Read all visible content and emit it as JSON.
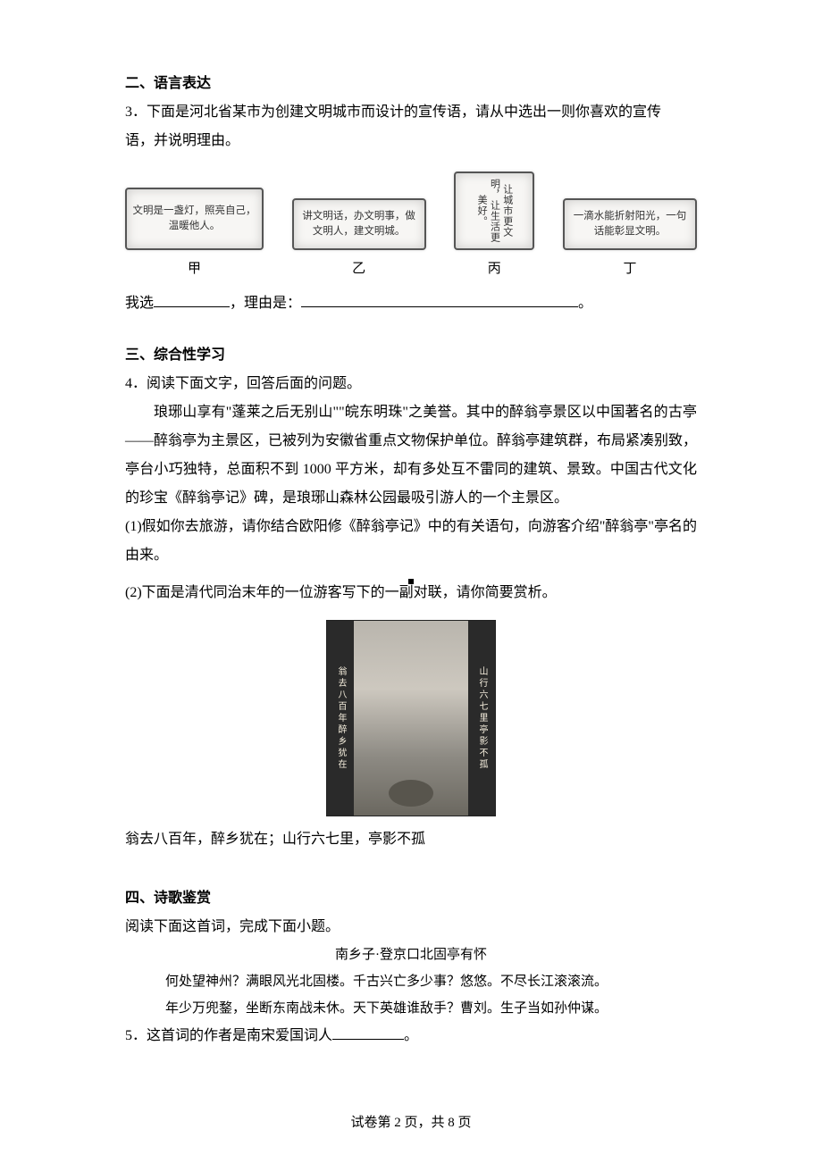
{
  "section2": {
    "heading": "二、语言表达",
    "q3_intro1": "3．下面是河北省某市为创建文明城市而设计的宣传语，请从中选出一则你喜欢的宣传",
    "q3_intro2": "语，并说明理由。",
    "slogans": {
      "a_text": "文明是一盏灯，照亮自己，温暖他人。",
      "a_label": "甲",
      "b_text": "讲文明话，办文明事，做文明人，建文明城。",
      "b_label": "乙",
      "c_text": "让城市更文明，让生活更美好。",
      "c_label": "丙",
      "d_text": "一滴水能折射阳光，一句话能彰显文明。",
      "d_label": "丁"
    },
    "fill_prefix": "我选",
    "fill_mid": "，理由是：",
    "fill_end": "。"
  },
  "section3": {
    "heading": "三、综合性学习",
    "q4_line1": "4．阅读下面文字，回答后面的问题。",
    "q4_para": "琅琊山享有\"蓬莱之后无别山\"\"皖东明珠\"之美誉。其中的醉翁亭景区以中国著名的古亭——醉翁亭为主景区，已被列为安徽省重点文物保护单位。醉翁亭建筑群，布局紧凑别致，亭台小巧独特，总面积不到 1000 平方米，却有多处互不雷同的建筑、景致。中国古代文化的珍宝《醉翁亭记》碑，是琅琊山森林公园最吸引游人的一个主景区。",
    "q4_sub1": "(1)假如你去旅游，请你结合欧阳修《醉翁亭记》中的有关语句，向游客介绍\"醉翁亭\"亭名的由来。",
    "q4_sub2": "(2)下面是清代同治末年的一位游客写下的一副对联，请你简要赏析。",
    "couplet_right": "山行六七里亭影不孤",
    "couplet_left": "翁去八百年醉乡犹在",
    "couplet_line": "翁去八百年，醉乡犹在；山行六七里，亭影不孤"
  },
  "section4": {
    "heading": "四、诗歌鉴赏",
    "intro": "阅读下面这首词，完成下面小题。",
    "title": "南乡子·登京口北固亭有怀",
    "line1": "何处望神州？满眼风光北固楼。千古兴亡多少事？悠悠。不尽长江滚滚流。",
    "line2": "年少万兜鍪，坐断东南战未休。天下英雄谁敌手？曹刘。生子当如孙仲谋。",
    "q5_pre": "5．这首词的作者是南宋爱国词人",
    "q5_end": "。"
  },
  "footer": "试卷第 2 页，共 8 页"
}
